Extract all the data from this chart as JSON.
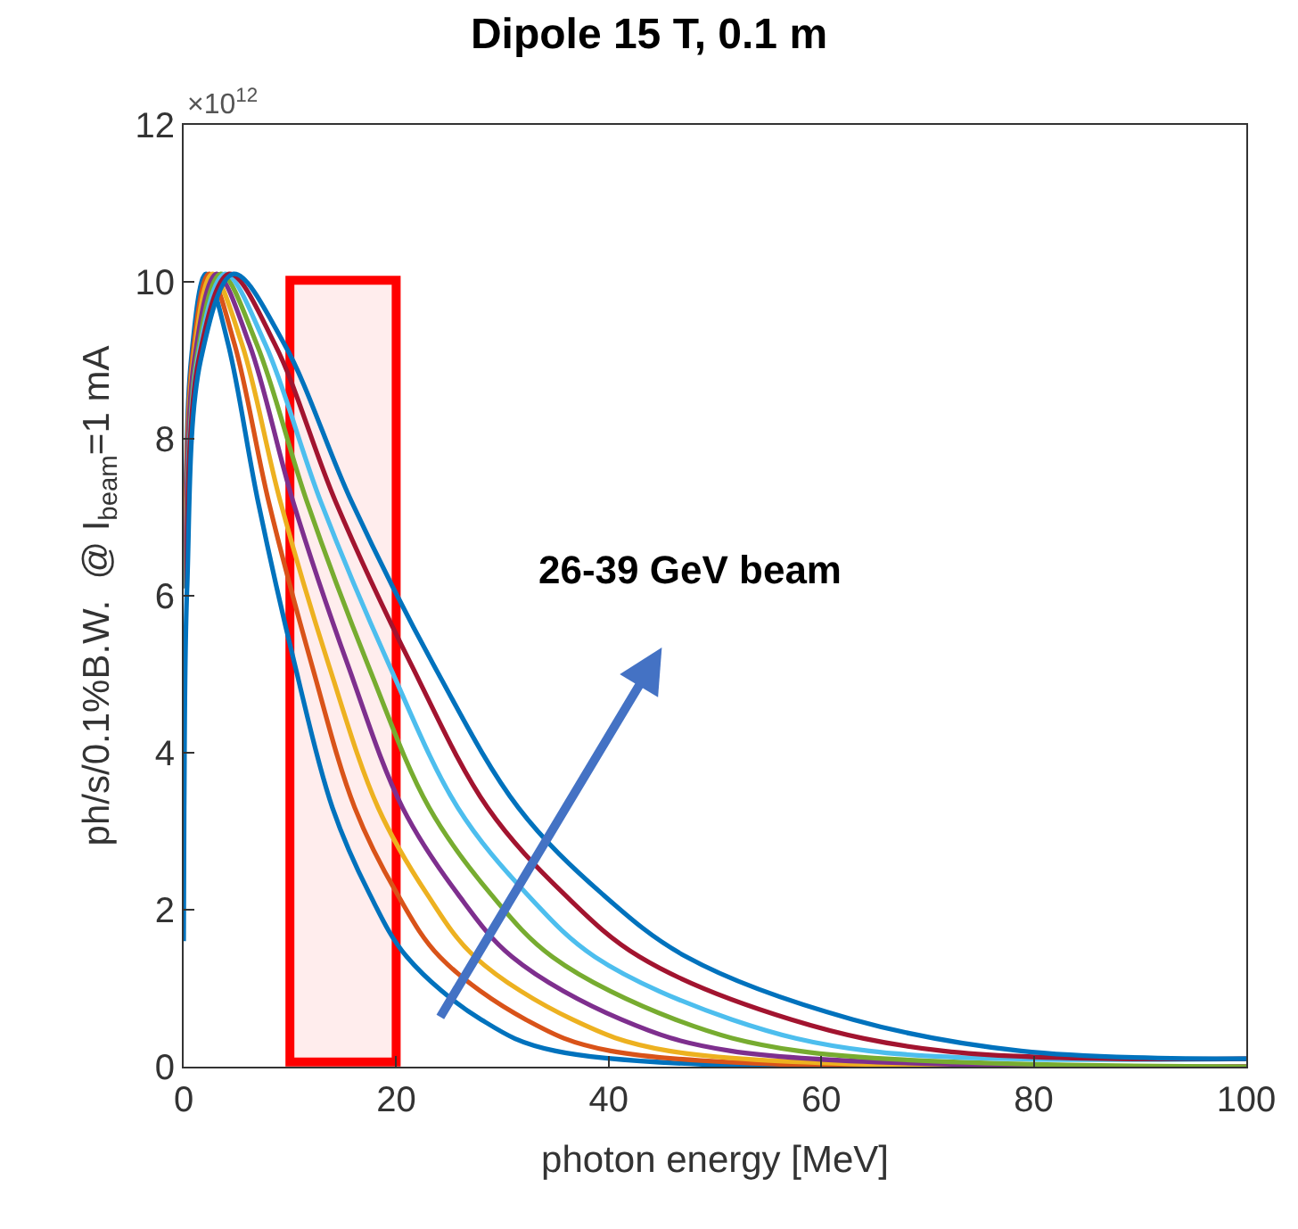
{
  "chart_data": {
    "type": "line",
    "title": "Dipole 15 T, 0.1 m",
    "xlabel": "photon energy [MeV]",
    "ylabel": "ph/s/0.1%B.W.  @ I$_{beam}$=1 mA",
    "annotations": [
      "×10$^{12}$",
      "26-39 GeV beam"
    ],
    "xlim": [
      0,
      100
    ],
    "xticks": [
      0,
      20,
      40,
      60,
      80,
      100
    ],
    "ylim": [
      0,
      12
    ],
    "yticks": [
      0,
      2,
      4,
      6,
      8,
      10,
      12
    ],
    "grid": false,
    "marker": "none",
    "line_style": "solid",
    "bands": [
      {
        "axis": "x",
        "from": 10,
        "to": 20,
        "color": "#ff0000"
      }
    ],
    "series": [
      {
        "color": "#0072bd",
        "x": [
          0.14,
          0.7,
          2.1,
          4.2,
          7,
          10.5,
          14,
          17.5,
          21,
          28,
          35,
          100
        ],
        "values": [
          6.1,
          9.0,
          10.1,
          9.2,
          7.2,
          5.1,
          3.3,
          2.2,
          1.4,
          0.6,
          0.2,
          0.0
        ]
      },
      {
        "color": "#d95319",
        "x": [
          0.16,
          0.8,
          2.4,
          4.8,
          8.0,
          12.1,
          16.1,
          20.1,
          24.1,
          32.2,
          40.2,
          100
        ],
        "values": [
          6.1,
          9.0,
          10.1,
          9.2,
          7.2,
          5.1,
          3.3,
          2.2,
          1.4,
          0.6,
          0.2,
          0.0
        ]
      },
      {
        "color": "#edb120",
        "x": [
          0.18,
          0.9,
          2.7,
          5.5,
          9.1,
          13.7,
          18.3,
          22.9,
          27.4,
          36.6,
          45.7,
          100
        ],
        "values": [
          6.1,
          9.0,
          10.1,
          9.2,
          7.2,
          5.1,
          3.3,
          2.2,
          1.4,
          0.6,
          0.2,
          0.0
        ]
      },
      {
        "color": "#7e2f8e",
        "x": [
          0.21,
          1.0,
          3.1,
          6.2,
          10.3,
          15.5,
          20.6,
          25.8,
          30.9,
          41.2,
          51.5,
          100
        ],
        "values": [
          6.1,
          9.0,
          10.1,
          9.2,
          7.2,
          5.1,
          3.3,
          2.2,
          1.4,
          0.6,
          0.2,
          0.0
        ]
      },
      {
        "color": "#77ac30",
        "x": [
          0.23,
          1.2,
          3.5,
          6.9,
          11.6,
          17.4,
          23.1,
          28.9,
          34.7,
          46.3,
          57.9,
          100
        ],
        "values": [
          6.1,
          9.0,
          10.1,
          9.2,
          7.2,
          5.1,
          3.3,
          2.2,
          1.4,
          0.6,
          0.2,
          0.0
        ]
      },
      {
        "color": "#4dbeee",
        "x": [
          0.26,
          1.3,
          3.9,
          7.7,
          12.9,
          19.4,
          25.8,
          32.3,
          38.7,
          51.6,
          64.5,
          100
        ],
        "values": [
          6.1,
          9.0,
          10.1,
          9.2,
          7.2,
          5.1,
          3.3,
          2.2,
          1.4,
          0.6,
          0.2,
          0.1
        ]
      },
      {
        "color": "#a2142f",
        "x": [
          0.29,
          1.4,
          4.3,
          8.6,
          14.3,
          21.5,
          28.6,
          35.8,
          42.9,
          57.2,
          71.5,
          100
        ],
        "values": [
          6.1,
          9.0,
          10.1,
          9.2,
          7.2,
          5.1,
          3.3,
          2.2,
          1.4,
          0.6,
          0.2,
          0.1
        ]
      },
      {
        "color": "#0072bd",
        "x": [
          0,
          0.05,
          0.32,
          1.6,
          4.7,
          9.5,
          15.8,
          23.6,
          31.5,
          39.4,
          47.3,
          63.0,
          78.8,
          100
        ],
        "values": [
          1.6,
          3.3,
          6.1,
          9.0,
          10.1,
          9.2,
          7.2,
          5.1,
          3.3,
          2.2,
          1.4,
          0.6,
          0.2,
          0.1
        ]
      }
    ]
  }
}
